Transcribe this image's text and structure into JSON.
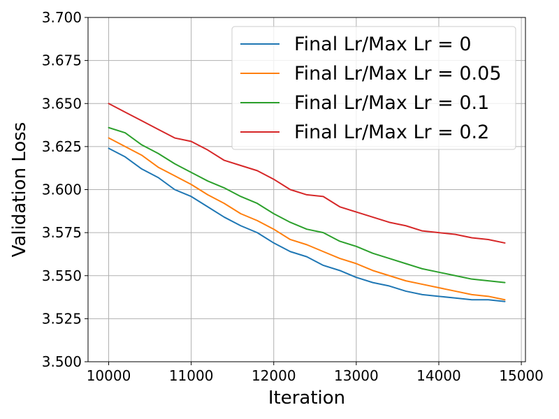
{
  "chart_data": {
    "type": "line",
    "xlabel": "Iteration",
    "ylabel": "Validation Loss",
    "xlim": [
      9750,
      15050
    ],
    "ylim": [
      3.5,
      3.7
    ],
    "xticks": [
      "10000",
      "11000",
      "12000",
      "13000",
      "14000",
      "15000"
    ],
    "yticks": [
      "3.500",
      "3.525",
      "3.550",
      "3.575",
      "3.600",
      "3.625",
      "3.650",
      "3.675",
      "3.700"
    ],
    "grid": true,
    "legend_position": "top-right",
    "x": [
      10000,
      10200,
      10400,
      10600,
      10800,
      11000,
      11200,
      11400,
      11600,
      11800,
      12000,
      12200,
      12400,
      12600,
      12800,
      13000,
      13200,
      13400,
      13600,
      13800,
      14000,
      14200,
      14400,
      14600,
      14800
    ],
    "series": [
      {
        "name": "Final Lr/Max Lr = 0",
        "color": "#1f77b4",
        "values": [
          3.624,
          3.619,
          3.612,
          3.607,
          3.6,
          3.596,
          3.59,
          3.584,
          3.579,
          3.575,
          3.569,
          3.564,
          3.561,
          3.556,
          3.553,
          3.549,
          3.546,
          3.544,
          3.541,
          3.539,
          3.538,
          3.537,
          3.536,
          3.536,
          3.535
        ]
      },
      {
        "name": "Final Lr/Max Lr = 0.05",
        "color": "#ff7f0e",
        "values": [
          3.63,
          3.625,
          3.62,
          3.613,
          3.608,
          3.603,
          3.597,
          3.592,
          3.586,
          3.582,
          3.577,
          3.571,
          3.568,
          3.564,
          3.56,
          3.557,
          3.553,
          3.55,
          3.547,
          3.545,
          3.543,
          3.541,
          3.539,
          3.538,
          3.536
        ]
      },
      {
        "name": "Final Lr/Max Lr = 0.1",
        "color": "#2ca02c",
        "values": [
          3.636,
          3.633,
          3.626,
          3.621,
          3.615,
          3.61,
          3.605,
          3.601,
          3.596,
          3.592,
          3.586,
          3.581,
          3.577,
          3.575,
          3.57,
          3.567,
          3.563,
          3.56,
          3.557,
          3.554,
          3.552,
          3.55,
          3.548,
          3.547,
          3.546
        ]
      },
      {
        "name": "Final Lr/Max Lr = 0.2",
        "color": "#d62728",
        "values": [
          3.65,
          3.645,
          3.64,
          3.635,
          3.63,
          3.628,
          3.623,
          3.617,
          3.614,
          3.611,
          3.606,
          3.6,
          3.597,
          3.596,
          3.59,
          3.587,
          3.584,
          3.581,
          3.579,
          3.576,
          3.575,
          3.574,
          3.572,
          3.571,
          3.569
        ]
      }
    ]
  }
}
